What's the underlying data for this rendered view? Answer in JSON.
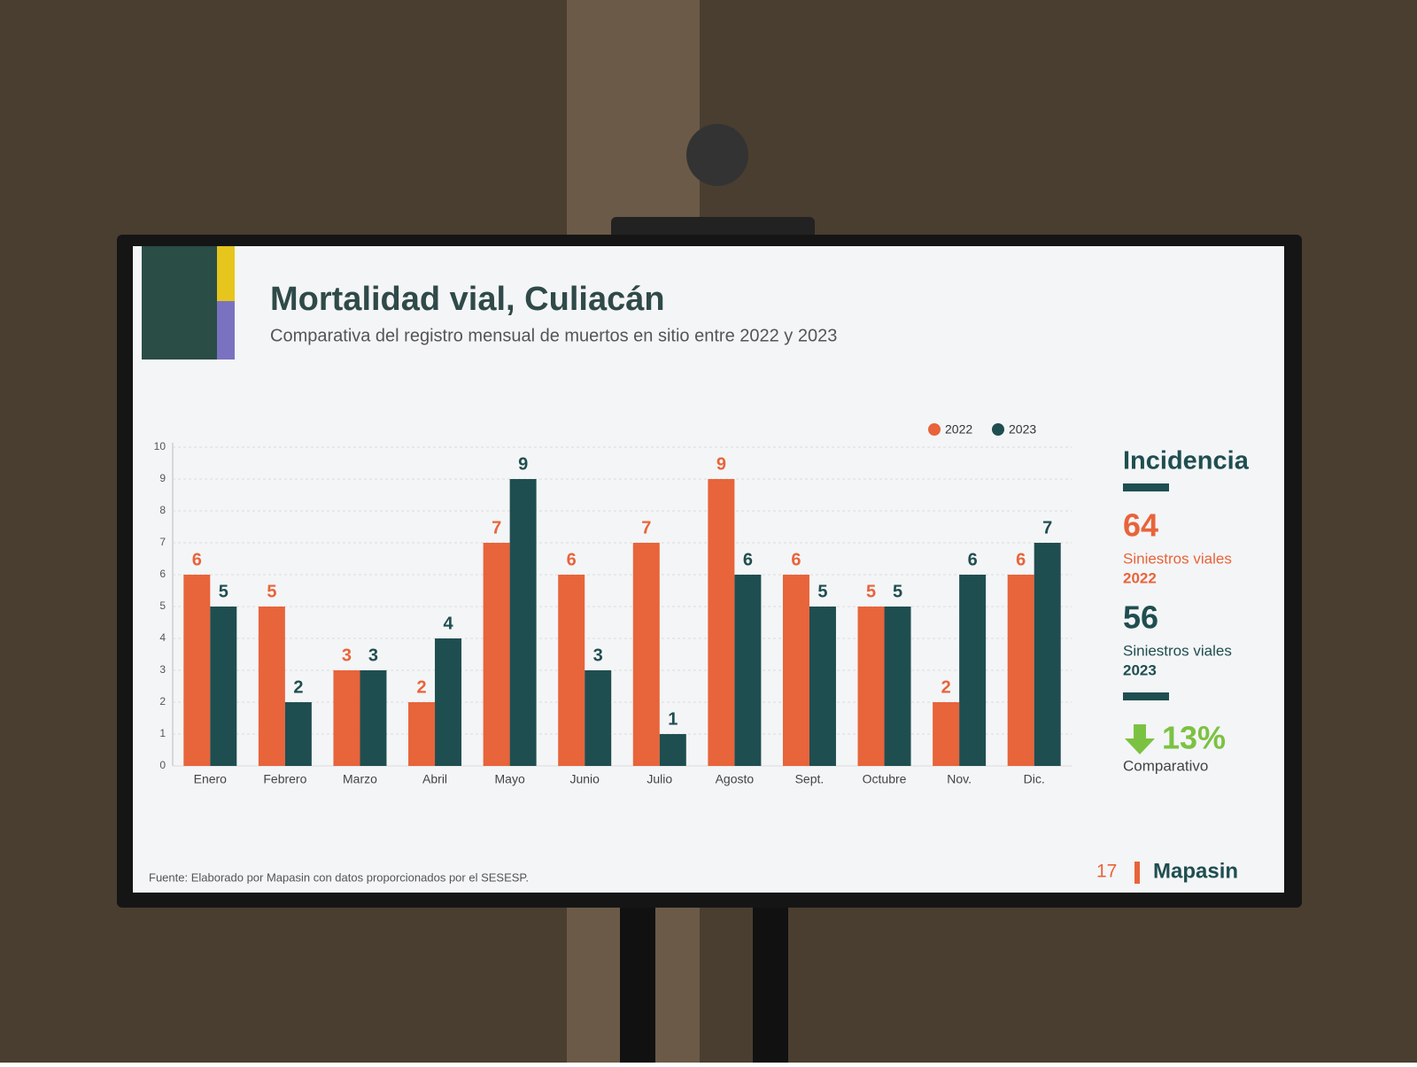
{
  "chart_data": {
    "type": "bar",
    "title": "Mortalidad vial, Culiacán",
    "subtitle": "Comparativa del registro mensual de muertos en sitio entre 2022 y 2023",
    "categories": [
      "Enero",
      "Febrero",
      "Marzo",
      "Abril",
      "Mayo",
      "Junio",
      "Julio",
      "Agosto",
      "Sept.",
      "Octubre",
      "Nov.",
      "Dic."
    ],
    "series": [
      {
        "name": "2022",
        "color": "#e8643a",
        "values": [
          6,
          5,
          3,
          2,
          7,
          6,
          7,
          9,
          6,
          5,
          2,
          6
        ]
      },
      {
        "name": "2023",
        "color": "#1f4e50",
        "values": [
          5,
          2,
          3,
          4,
          9,
          3,
          1,
          6,
          5,
          5,
          6,
          7
        ]
      }
    ],
    "ylim": [
      0,
      10
    ],
    "yticks": [
      0,
      1,
      2,
      3,
      4,
      5,
      6,
      7,
      8,
      9,
      10
    ],
    "grid": true,
    "legend": "top-right"
  },
  "panel": {
    "heading": "Incidencia",
    "items": [
      {
        "value": 64,
        "label": "Siniestros viales",
        "year": "2022"
      },
      {
        "value": 56,
        "label": "Siniestros viales",
        "year": "2023"
      }
    ],
    "change": "13%",
    "change_label": "Comparativo"
  },
  "footer": {
    "source": "Fuente: Elaborado por Mapasin con datos proporcionados por el SESESP.",
    "page": "17",
    "brand": "Mapasin"
  }
}
